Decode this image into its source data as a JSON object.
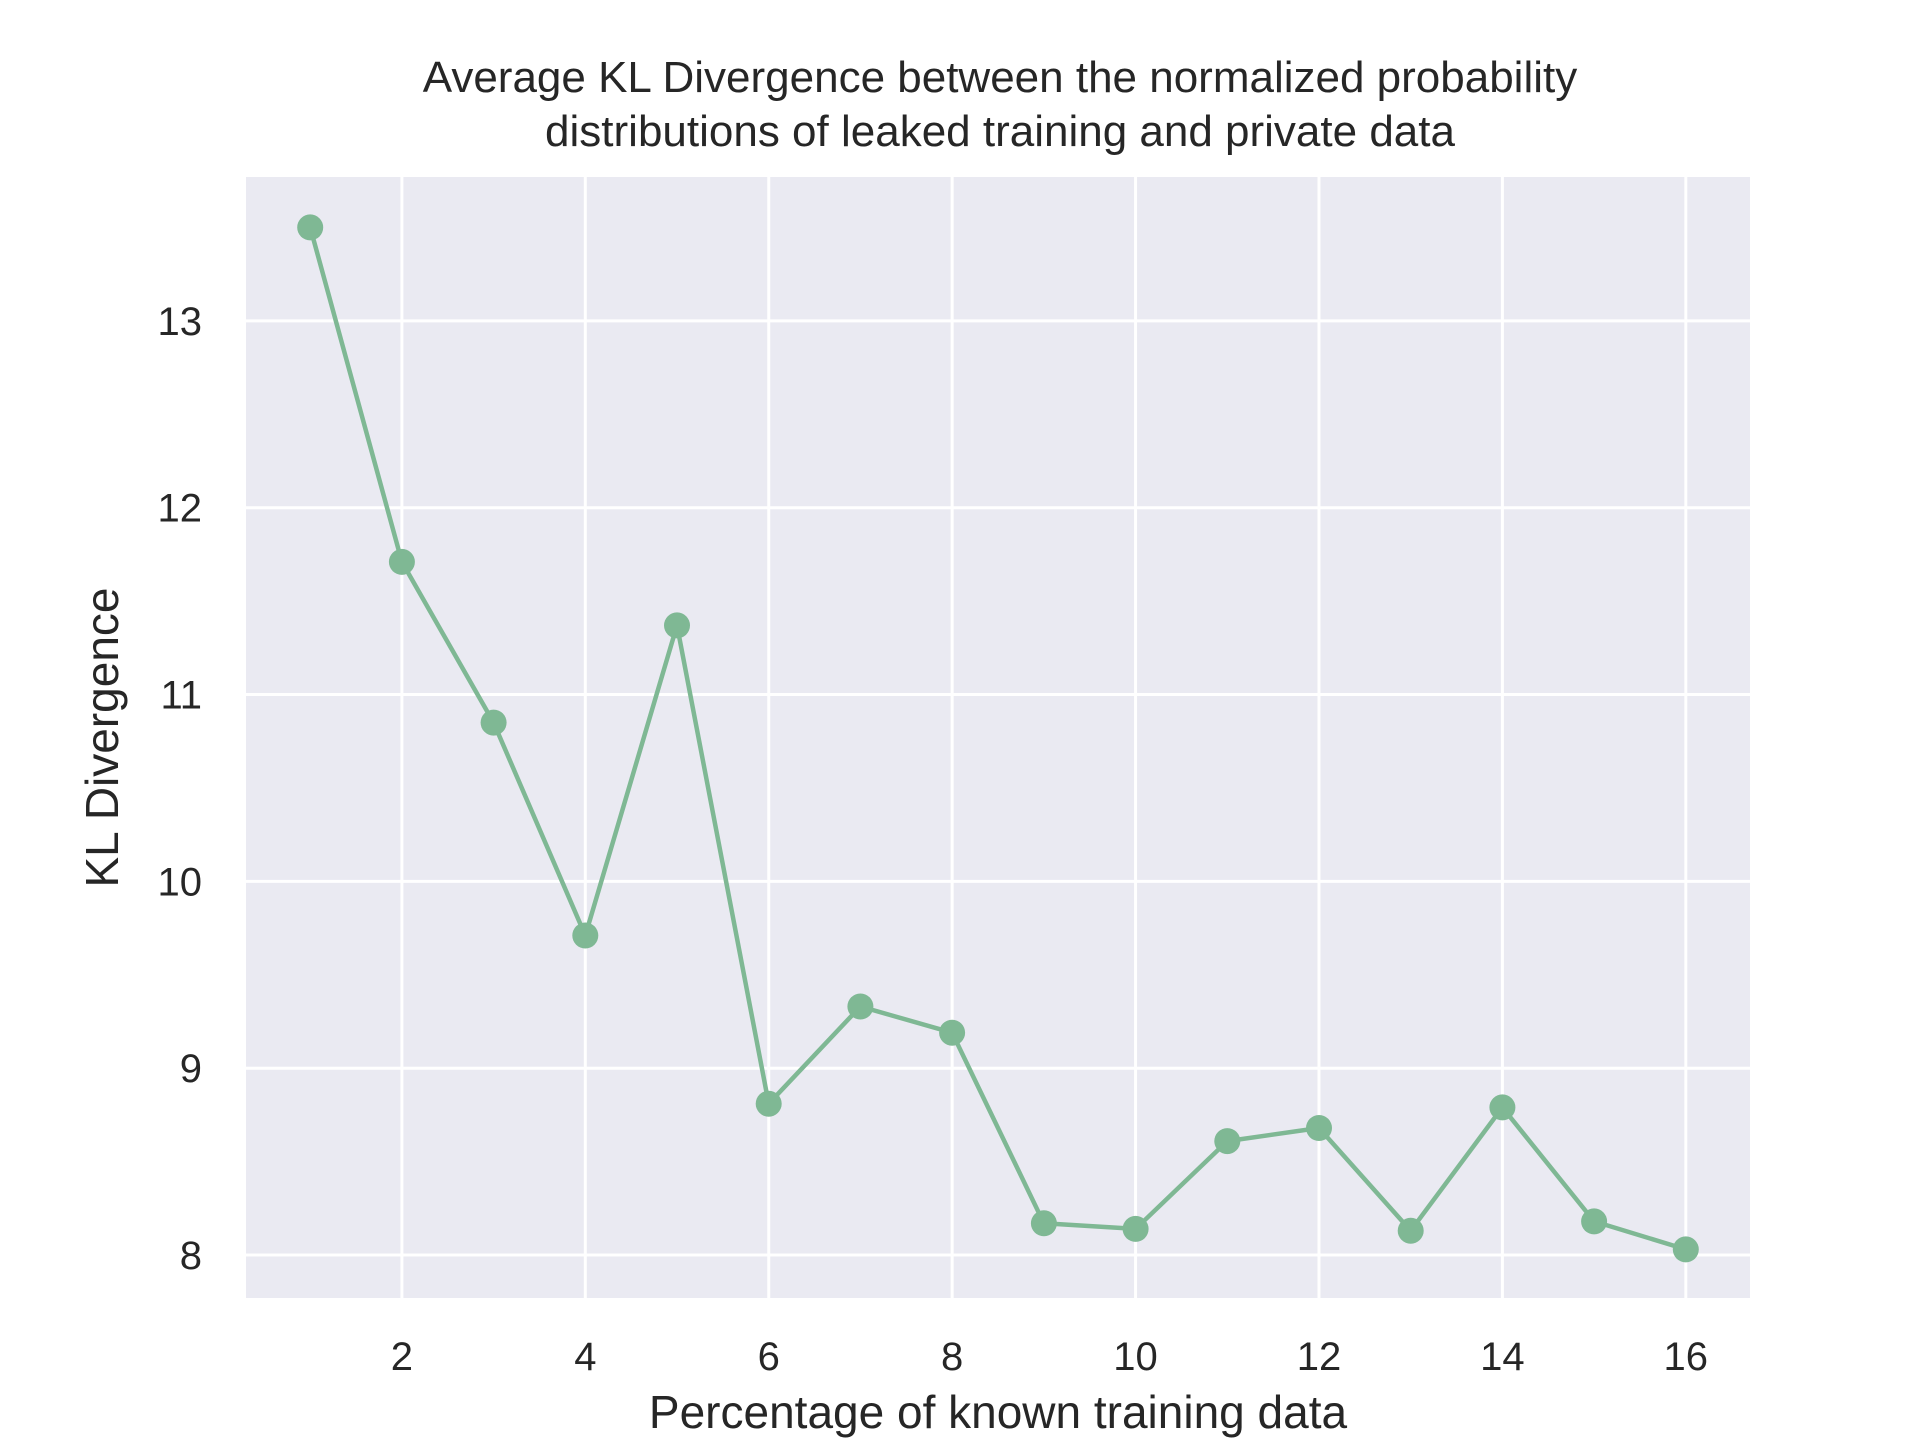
{
  "chart_data": {
    "type": "line",
    "title": [
      "Average KL Divergence between the normalized probability",
      "distributions of leaked training and private data"
    ],
    "xlabel": "Percentage of known training data",
    "ylabel": "KL Divergence",
    "x": [
      1,
      2,
      3,
      4,
      5,
      6,
      7,
      8,
      9,
      10,
      11,
      12,
      13,
      14,
      15,
      16
    ],
    "series": [
      {
        "values": [
          13.5,
          11.71,
          10.85,
          9.71,
          11.37,
          8.81,
          9.33,
          9.19,
          8.17,
          8.14,
          8.61,
          8.68,
          8.13,
          8.79,
          8.18,
          8.03
        ],
        "color": "#7fb894"
      }
    ],
    "xticks": [
      2,
      4,
      6,
      8,
      10,
      12,
      14,
      16
    ],
    "yticks": [
      8,
      9,
      10,
      11,
      12,
      13
    ],
    "xlim": [
      0.3,
      16.7
    ],
    "ylim": [
      7.77,
      13.77
    ],
    "grid": true,
    "background": "#eaeaf2",
    "gridColor": "#ffffff"
  }
}
